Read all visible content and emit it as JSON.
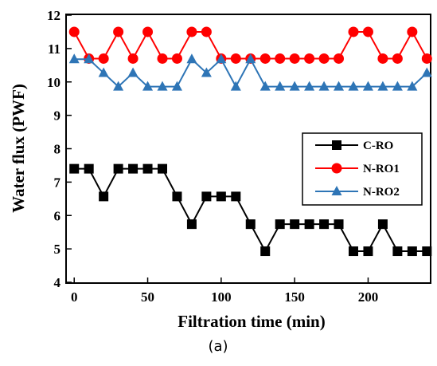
{
  "chart_data": {
    "type": "line",
    "title": "",
    "xlabel": "Filtration time (min)",
    "ylabel": "Water flux (PWF)",
    "caption": "(a)",
    "xlim": [
      -5,
      242
    ],
    "ylim": [
      4,
      12
    ],
    "xticks": [
      0,
      50,
      100,
      150,
      200
    ],
    "yticks": [
      4,
      5,
      6,
      7,
      8,
      9,
      10,
      11,
      12
    ],
    "grid": false,
    "legend_position": "right-middle",
    "x": [
      0,
      10,
      20,
      30,
      40,
      50,
      60,
      70,
      80,
      90,
      100,
      110,
      120,
      130,
      140,
      150,
      160,
      170,
      180,
      190,
      200,
      210,
      220,
      230,
      240
    ],
    "series": [
      {
        "name": "C-RO",
        "color": "#000000",
        "marker": "square",
        "values": [
          7.4,
          7.4,
          6.57,
          7.4,
          7.4,
          7.4,
          7.4,
          6.57,
          5.74,
          6.57,
          6.57,
          6.57,
          5.74,
          4.93,
          5.74,
          5.74,
          5.74,
          5.74,
          5.74,
          4.93,
          4.93,
          5.74,
          4.93,
          4.93,
          4.93
        ]
      },
      {
        "name": "N-RO1",
        "color": "#ff0000",
        "marker": "circle",
        "values": [
          11.5,
          10.7,
          10.7,
          11.5,
          10.7,
          11.5,
          10.7,
          10.7,
          11.5,
          11.5,
          10.7,
          10.7,
          10.7,
          10.7,
          10.7,
          10.7,
          10.7,
          10.7,
          10.7,
          11.5,
          11.5,
          10.7,
          10.7,
          11.5,
          10.7
        ]
      },
      {
        "name": "N-RO2",
        "color": "#2e75b6",
        "marker": "triangle",
        "values": [
          10.68,
          10.68,
          10.27,
          9.86,
          10.27,
          9.86,
          9.86,
          9.86,
          10.68,
          10.27,
          10.68,
          9.86,
          10.68,
          9.86,
          9.86,
          9.86,
          9.86,
          9.86,
          9.86,
          9.86,
          9.86,
          9.86,
          9.86,
          9.86,
          10.27
        ]
      }
    ]
  }
}
